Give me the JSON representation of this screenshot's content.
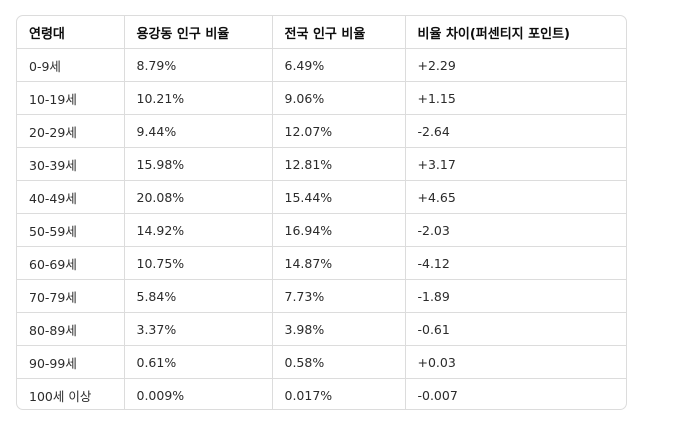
{
  "table": {
    "headers": [
      "연령대",
      "용강동 인구 비율",
      "전국 인구 비율",
      "비율 차이(퍼센티지 포인트)"
    ],
    "rows": [
      [
        "0-9세",
        "8.79%",
        "6.49%",
        "+2.29"
      ],
      [
        "10-19세",
        "10.21%",
        "9.06%",
        "+1.15"
      ],
      [
        "20-29세",
        "9.44%",
        "12.07%",
        "-2.64"
      ],
      [
        "30-39세",
        "15.98%",
        "12.81%",
        "+3.17"
      ],
      [
        "40-49세",
        "20.08%",
        "15.44%",
        "+4.65"
      ],
      [
        "50-59세",
        "14.92%",
        "16.94%",
        "-2.03"
      ],
      [
        "60-69세",
        "10.75%",
        "14.87%",
        "-4.12"
      ],
      [
        "70-79세",
        "5.84%",
        "7.73%",
        "-1.89"
      ],
      [
        "80-89세",
        "3.37%",
        "3.98%",
        "-0.61"
      ],
      [
        "90-99세",
        "0.61%",
        "0.58%",
        "+0.03"
      ],
      [
        "100세 이상",
        "0.009%",
        "0.017%",
        "-0.007"
      ]
    ]
  }
}
